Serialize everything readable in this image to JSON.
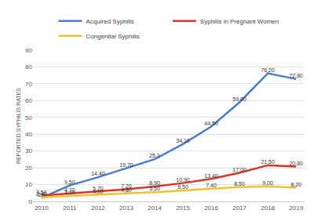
{
  "chart_data": {
    "type": "line",
    "y_label": "REPORTED SYPHILIS RATES",
    "categories": [
      "2010",
      "2011",
      "2012",
      "2013",
      "2014",
      "2015",
      "2016",
      "2017",
      "2018",
      "2019"
    ],
    "series": [
      {
        "name": "Acquired Syphilis",
        "color": "#4a7ec9",
        "values": [
          2.1,
          9.5,
          14.4,
          19.7,
          25.1,
          34.1,
          44.5,
          59.0,
          76.2,
          72.8
        ],
        "value_labels": [
          "2,1",
          "9,50",
          "14,40",
          "19,70",
          "25,1",
          "34,10",
          "44,50",
          "59,00",
          "76,20",
          "72,80"
        ]
      },
      {
        "name": "Syphilis in Pregnant Women",
        "color": "#d9352b",
        "values": [
          3.5,
          4.7,
          5.7,
          7.2,
          8.9,
          10.9,
          13.4,
          17.0,
          21.5,
          20.8
        ],
        "value_labels": [
          "3,50",
          "4,70",
          "5,70",
          "7,20",
          "8,90",
          "10,90",
          "13,40",
          "17,00",
          "21,50",
          "20,80"
        ]
      },
      {
        "name": "Congenital Syphilis",
        "color": "#f2c12e",
        "values": [
          2.4,
          3.3,
          4.0,
          4.8,
          5.5,
          6.5,
          7.4,
          8.5,
          9.0,
          8.2
        ],
        "value_labels": [
          "2,40",
          "3,30",
          "4,00",
          "4,80",
          "5,50",
          "6,50",
          "7,40",
          "8,50",
          "9,00",
          "8,20"
        ]
      }
    ],
    "ylim": [
      0,
      90
    ],
    "yticks": [
      0,
      10,
      20,
      30,
      40,
      50,
      60,
      70,
      80,
      90
    ],
    "grid": true,
    "legend": "top",
    "data_labels": true
  }
}
